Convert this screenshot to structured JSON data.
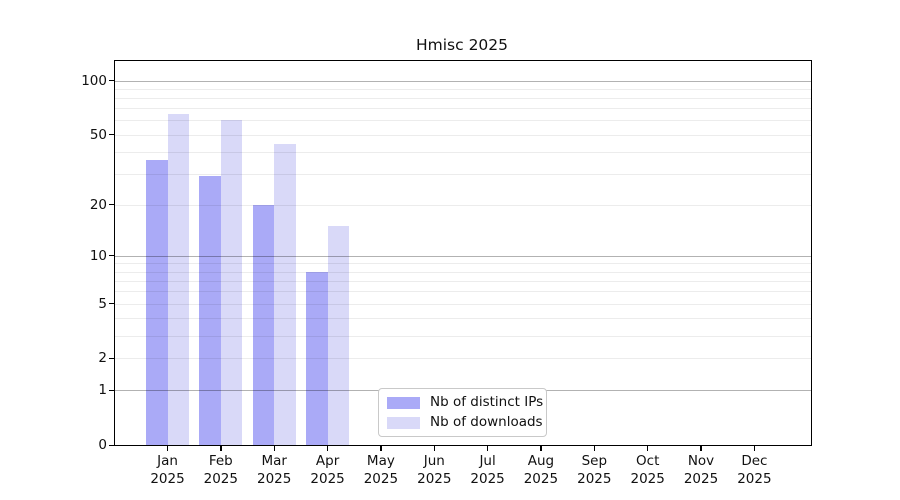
{
  "title": "Hmisc 2025",
  "legend": {
    "items": [
      {
        "label": "Nb of distinct IPs",
        "color": "#aaaaf7"
      },
      {
        "label": "Nb of downloads",
        "color": "#d9d9f8"
      }
    ]
  },
  "chart_data": {
    "type": "bar",
    "title": "Hmisc 2025",
    "categories": [
      "Jan 2025",
      "Feb 2025",
      "Mar 2025",
      "Apr 2025",
      "May 2025",
      "Jun 2025",
      "Jul 2025",
      "Aug 2025",
      "Sep 2025",
      "Oct 2025",
      "Nov 2025",
      "Dec 2025"
    ],
    "series": [
      {
        "name": "Nb of distinct IPs",
        "color": "#aaaaf7",
        "values": [
          36,
          29,
          20,
          8,
          0,
          0,
          0,
          0,
          0,
          0,
          0,
          0
        ]
      },
      {
        "name": "Nb of downloads",
        "color": "#d9d9f8",
        "values": [
          65,
          60,
          44,
          15,
          0,
          0,
          0,
          0,
          0,
          0,
          0,
          0
        ]
      }
    ],
    "yscale": "log1p",
    "ylim": [
      0,
      127
    ],
    "yticks": [
      0,
      1,
      2,
      5,
      10,
      20,
      50,
      100
    ],
    "major_gridlines": [
      1,
      10,
      100
    ],
    "minor_gridlines": [
      2,
      3,
      4,
      5,
      6,
      7,
      8,
      9,
      20,
      30,
      40,
      50,
      60,
      70,
      80,
      90
    ],
    "grid": true,
    "legend_position": "lower center",
    "xlabel": "",
    "ylabel": ""
  }
}
